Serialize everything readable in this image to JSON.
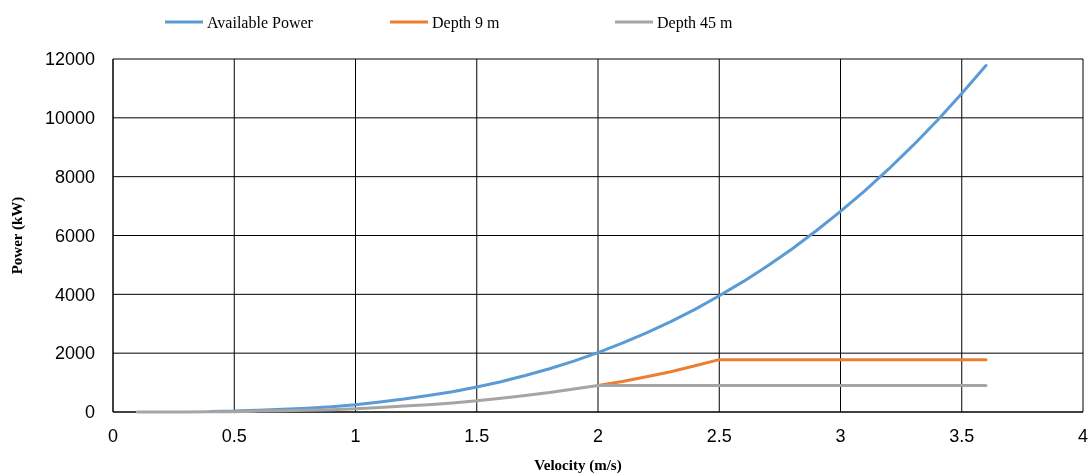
{
  "chart_data": {
    "type": "line",
    "xlabel": "Velocity (m/s)",
    "ylabel": "Power (kW)",
    "x": [
      0.1,
      0.2,
      0.3,
      0.4,
      0.5,
      0.6,
      0.7,
      0.8,
      0.9,
      1.0,
      1.1,
      1.2,
      1.3,
      1.4,
      1.5,
      1.6,
      1.7,
      1.8,
      1.9,
      2.0,
      2.1,
      2.2,
      2.3,
      2.4,
      2.5,
      2.6,
      2.7,
      2.8,
      2.9,
      3.0,
      3.1,
      3.2,
      3.3,
      3.4,
      3.5,
      3.6
    ],
    "series": [
      {
        "name": "Available Power",
        "color": "#5b9bd5",
        "values": [
          null,
          null,
          null,
          20,
          30,
          60,
          90,
          130,
          180,
          250,
          340,
          440,
          560,
          690,
          850,
          1030,
          1240,
          1470,
          1730,
          2020,
          2340,
          2690,
          3070,
          3490,
          3950,
          4440,
          4970,
          5540,
          6160,
          6820,
          7520,
          8270,
          9070,
          9920,
          10830,
          11780
        ]
      },
      {
        "name": "Depth 9 m",
        "color": "#ed7d31",
        "values": [
          null,
          null,
          null,
          null,
          null,
          null,
          null,
          null,
          null,
          null,
          null,
          null,
          null,
          null,
          null,
          null,
          null,
          null,
          null,
          900,
          1040,
          1200,
          1370,
          1570,
          1780,
          1780,
          1780,
          1780,
          1780,
          1780,
          1780,
          1780,
          1780,
          1780,
          1780,
          1780
        ]
      },
      {
        "name": "Depth 45 m",
        "color": "#a5a5a5",
        "values": [
          0,
          0,
          0,
          10,
          10,
          30,
          40,
          60,
          80,
          110,
          150,
          200,
          250,
          310,
          380,
          470,
          560,
          660,
          780,
          900,
          900,
          900,
          900,
          900,
          900,
          900,
          900,
          900,
          900,
          900,
          900,
          900,
          900,
          900,
          900,
          900
        ]
      }
    ],
    "xlim": [
      0,
      4
    ],
    "xticks": [
      0,
      0.5,
      1,
      1.5,
      2,
      2.5,
      3,
      3.5,
      4
    ],
    "ylim": [
      0,
      12000
    ],
    "yticks": [
      0,
      2000,
      4000,
      6000,
      8000,
      10000,
      12000
    ],
    "grid": true,
    "legend": "top",
    "line_style": "solid",
    "marker": "none"
  }
}
